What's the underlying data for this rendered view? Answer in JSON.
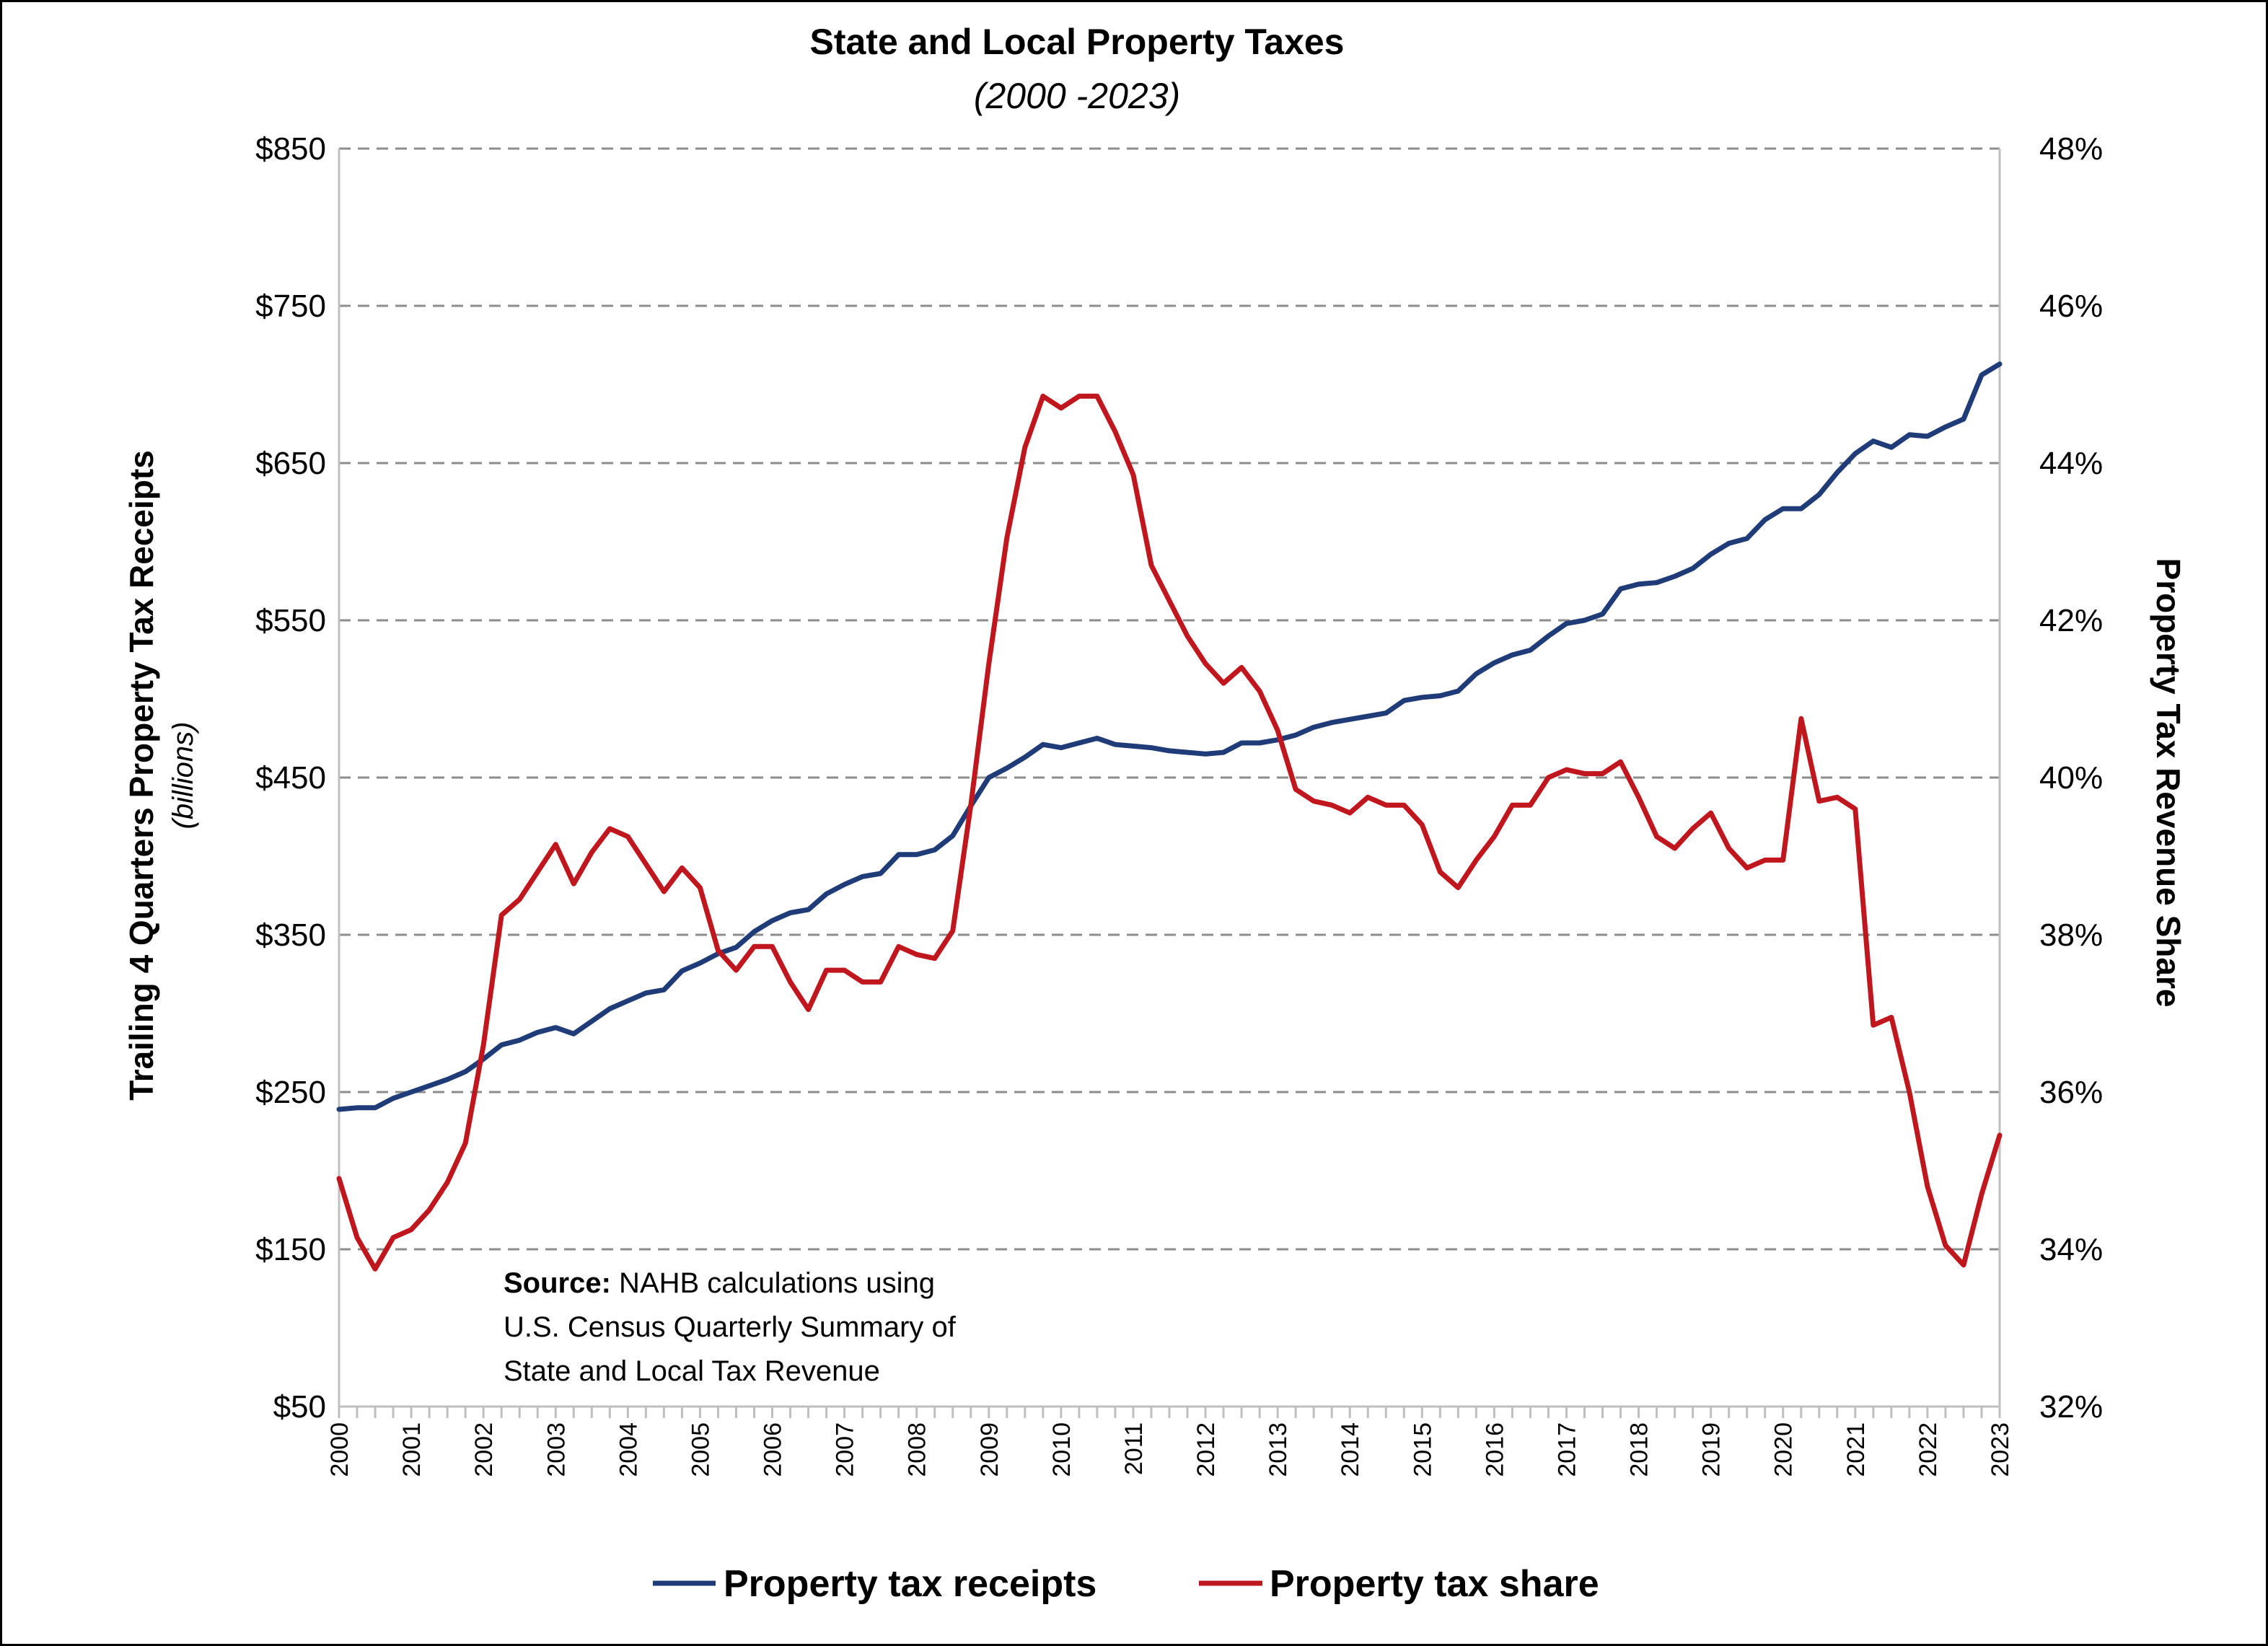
{
  "chart_data": {
    "type": "line",
    "title": "State and Local Property Taxes",
    "subtitle": "(2000 -2023)",
    "y_left": {
      "label": "Trailing 4 Quarters Property Tax Receipts",
      "sublabel": "(billions)",
      "range": [
        50,
        850
      ],
      "ticks": [
        "$850",
        "$750",
        "$650",
        "$550",
        "$450",
        "$350",
        "$250",
        "$150",
        "$50"
      ]
    },
    "y_right": {
      "label": "Property Tax Revenue Share",
      "range": [
        32,
        48
      ],
      "ticks": [
        "48%",
        "46%",
        "44%",
        "42%",
        "40%",
        "38%",
        "36%",
        "34%",
        "32%"
      ]
    },
    "x_ticks": [
      "2000",
      "2001",
      "2002",
      "2003",
      "2004",
      "2005",
      "2006",
      "2007",
      "2008",
      "2009",
      "2010",
      "2011",
      "2012",
      "2013",
      "2014",
      "2015",
      "2016",
      "2017",
      "2018",
      "2019",
      "2020",
      "2021",
      "2022",
      "2023"
    ],
    "grid": "horizontal dashed",
    "series": [
      {
        "name": "Property tax receipts",
        "axis": "left",
        "color": "#1f3c78",
        "x_start": "2000",
        "x_step": "quarter",
        "values": [
          239,
          240,
          240,
          246,
          250,
          254,
          258,
          263,
          271,
          280,
          283,
          288,
          291,
          287,
          295,
          303,
          308,
          313,
          315,
          327,
          332,
          338,
          342,
          352,
          359,
          364,
          366,
          376,
          382,
          387,
          389,
          401,
          401,
          404,
          413,
          432,
          450,
          456,
          463,
          471,
          469,
          472,
          475,
          471,
          470,
          469,
          467,
          466,
          465,
          466,
          472,
          472,
          474,
          477,
          482,
          485,
          487,
          489,
          491,
          499,
          501,
          502,
          505,
          516,
          523,
          528,
          531,
          540,
          548,
          550,
          554,
          570,
          573,
          574,
          578,
          583,
          592,
          599,
          602,
          614,
          621,
          621,
          630,
          644,
          656,
          664,
          660,
          668,
          667,
          673,
          678,
          706,
          713
        ]
      },
      {
        "name": "Property tax share",
        "axis": "right",
        "color": "#c0161e",
        "x_start": "2000",
        "x_step": "quarter",
        "values": [
          34.9,
          34.15,
          33.75,
          34.15,
          34.25,
          34.5,
          34.85,
          35.35,
          36.6,
          38.25,
          38.45,
          38.8,
          39.15,
          38.65,
          39.05,
          39.35,
          39.25,
          38.9,
          38.55,
          38.85,
          38.6,
          37.8,
          37.55,
          37.85,
          37.85,
          37.4,
          37.05,
          37.55,
          37.55,
          37.4,
          37.4,
          37.85,
          37.75,
          37.7,
          38.05,
          39.65,
          41.45,
          43.05,
          44.2,
          44.85,
          44.7,
          44.85,
          44.85,
          44.4,
          43.85,
          42.7,
          42.25,
          41.8,
          41.45,
          41.2,
          41.4,
          41.1,
          40.6,
          39.85,
          39.7,
          39.65,
          39.55,
          39.75,
          39.65,
          39.65,
          39.4,
          38.8,
          38.6,
          38.95,
          39.25,
          39.65,
          39.65,
          40.0,
          40.1,
          40.05,
          40.05,
          40.2,
          39.75,
          39.25,
          39.1,
          39.35,
          39.55,
          39.1,
          38.85,
          38.95,
          38.95,
          40.75,
          39.7,
          39.75,
          39.6,
          36.85,
          36.95,
          36.0,
          34.8,
          34.05,
          33.8,
          34.7,
          35.45
        ]
      }
    ]
  },
  "annotation": {
    "source_bold": "Source:",
    "source_line1": " NAHB calculations using",
    "source_line2": "U.S. Census Quarterly Summary of",
    "source_line3": "State and Local Tax Revenue"
  },
  "legend": [
    {
      "label": "Property tax receipts",
      "color": "#1f3c78"
    },
    {
      "label": "Property tax share",
      "color": "#c0161e"
    }
  ]
}
